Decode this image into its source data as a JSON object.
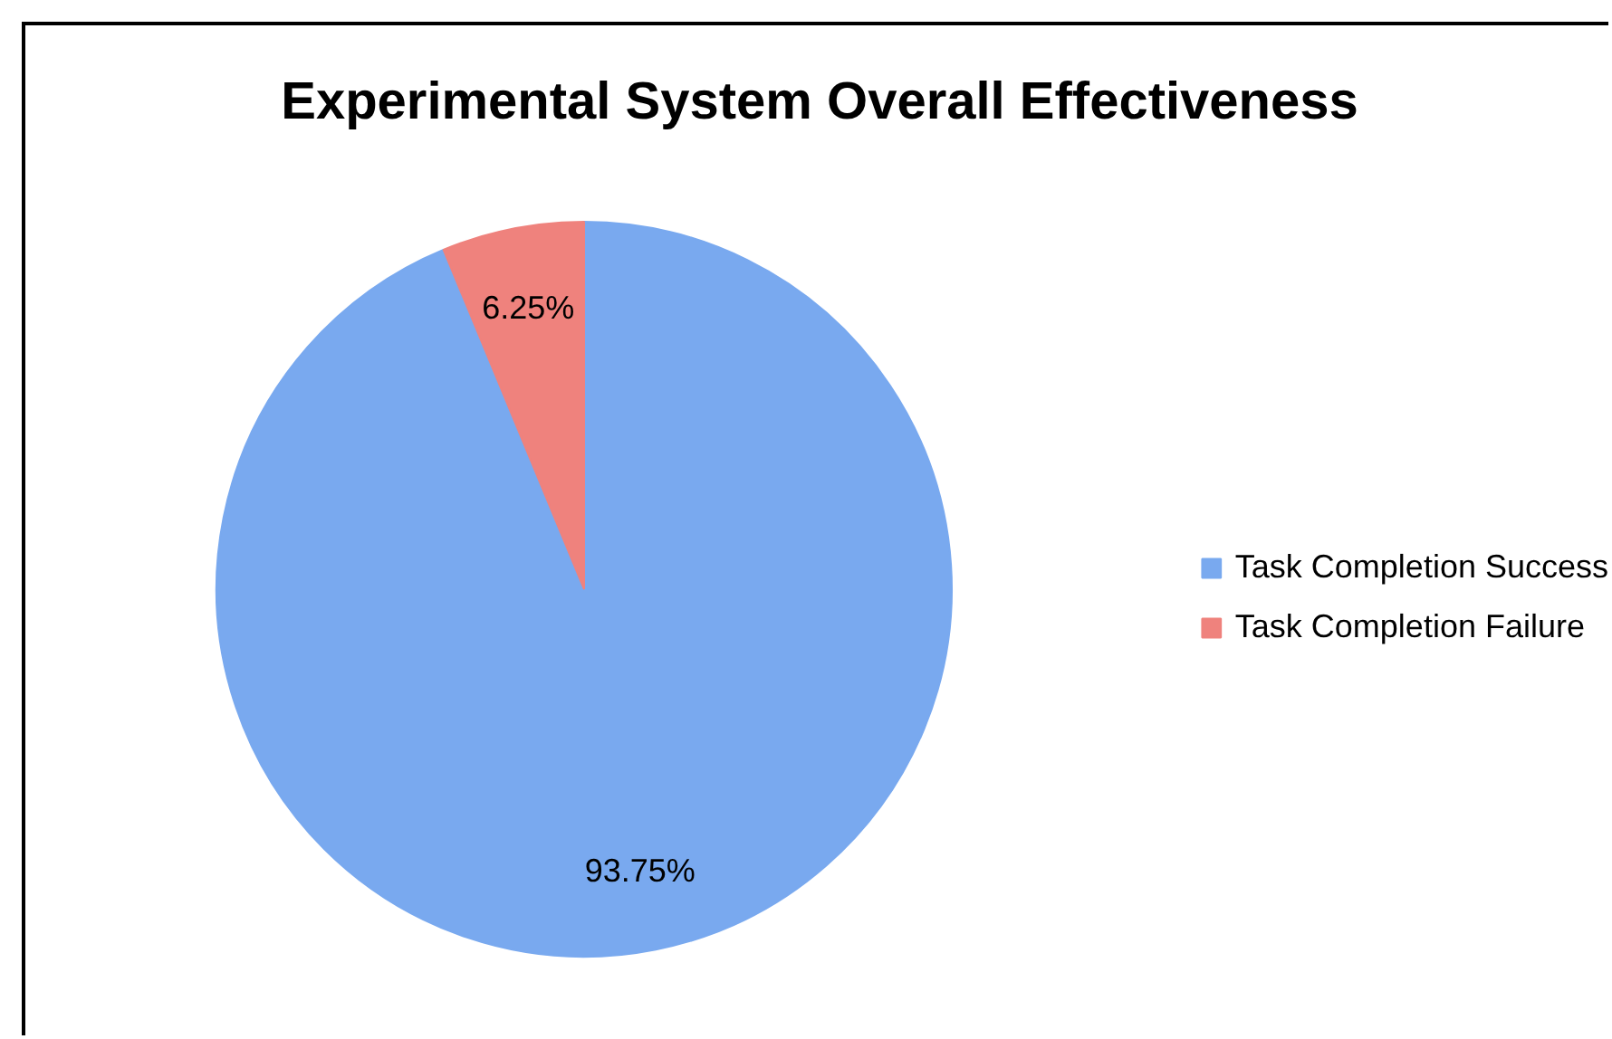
{
  "chart_data": {
    "type": "pie",
    "title": "Experimental System Overall Effectiveness",
    "categories": [
      "Task Completion Success",
      "Task Completion Failure"
    ],
    "values": [
      93.75,
      6.25
    ],
    "colors": [
      "#79a9ef",
      "#ef827d"
    ],
    "value_labels": [
      "93.75%",
      "6.25%"
    ],
    "legend": "right"
  }
}
